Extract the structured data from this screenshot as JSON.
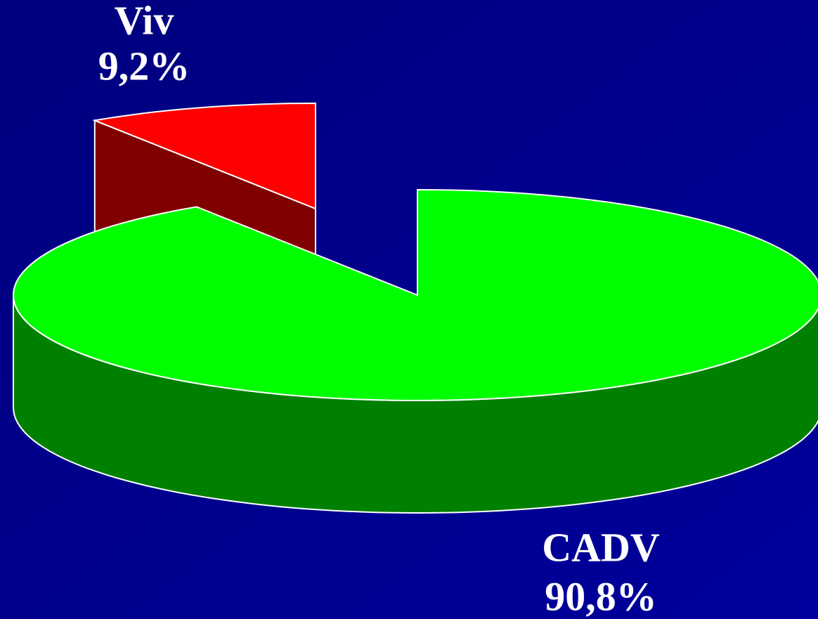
{
  "chart_data": {
    "type": "pie",
    "categories": [
      "Viv",
      "CADV"
    ],
    "values": [
      9.2,
      90.8
    ],
    "value_labels": [
      "9,2%",
      "90,8%"
    ],
    "colors": [
      "#ff0000",
      "#00ff00"
    ]
  }
}
